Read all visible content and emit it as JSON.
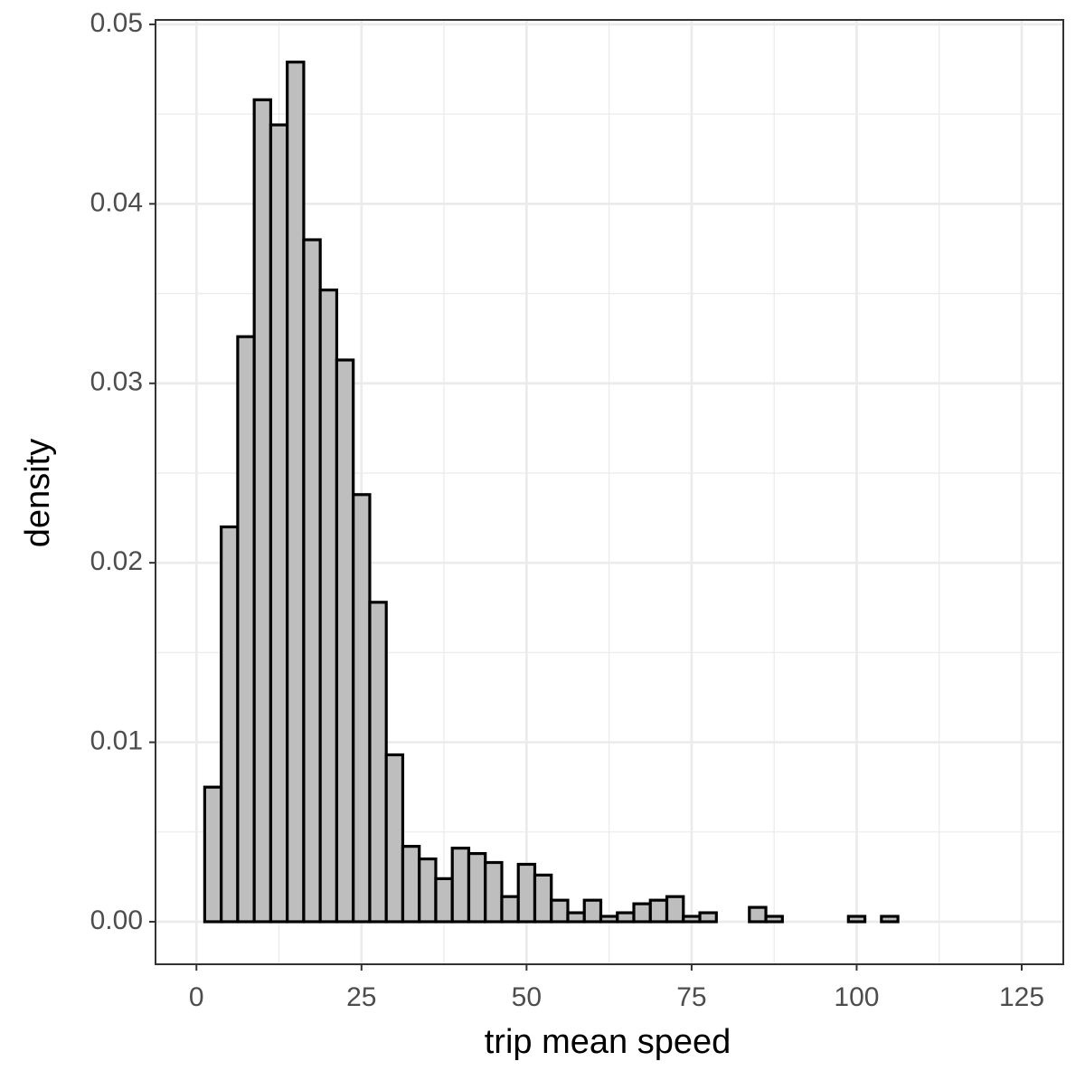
{
  "chart_data": {
    "type": "histogram",
    "x_label": "trip mean speed",
    "y_label": "density",
    "bins": [
      1.25,
      3.75,
      6.25,
      8.75,
      11.25,
      13.75,
      16.25,
      18.75,
      21.25,
      23.75,
      26.25,
      28.75,
      31.25,
      33.75,
      36.25,
      38.75,
      41.25,
      43.75,
      46.25,
      48.75,
      51.25,
      53.75,
      56.25,
      58.75,
      61.25,
      63.75,
      66.25,
      68.75,
      71.25,
      73.75,
      76.25,
      78.75,
      81.25,
      83.75,
      86.25,
      88.75,
      91.25,
      93.75,
      96.25,
      98.75,
      101.25,
      103.75,
      106.25,
      108.75,
      111.25,
      113.75,
      116.25,
      118.75,
      121.25,
      123.75
    ],
    "values": [
      0.0075,
      0.022,
      0.0326,
      0.0458,
      0.0444,
      0.0479,
      0.038,
      0.0352,
      0.0313,
      0.0238,
      0.0178,
      0.0093,
      0.0042,
      0.0035,
      0.0024,
      0.0041,
      0.0038,
      0.0033,
      0.0014,
      0.0032,
      0.0026,
      0.0012,
      0.0005,
      0.0012,
      0.0003,
      0.0005,
      0.001,
      0.0012,
      0.0014,
      0.0003,
      0.0005,
      0,
      0,
      0.0008,
      0.0003,
      0,
      0,
      0,
      0,
      0.0003,
      0,
      0.0003,
      0,
      0,
      0,
      0,
      0,
      0,
      0
    ],
    "color": "#bebebe",
    "edge_color": "#000000",
    "xlim": [
      -6.2,
      131.3
    ],
    "xticks": [
      0,
      25,
      50,
      75,
      100,
      125
    ],
    "ylim": [
      -0.00237,
      0.05025
    ],
    "yticks": [
      {
        "value": 0,
        "label": "0.00"
      },
      {
        "value": 0.01,
        "label": "0.01"
      },
      {
        "value": 0.02,
        "label": "0.02"
      },
      {
        "value": 0.03,
        "label": "0.03"
      },
      {
        "value": 0.04,
        "label": "0.04"
      },
      {
        "value": 0.05,
        "label": "0.05"
      }
    ],
    "grid": true
  }
}
